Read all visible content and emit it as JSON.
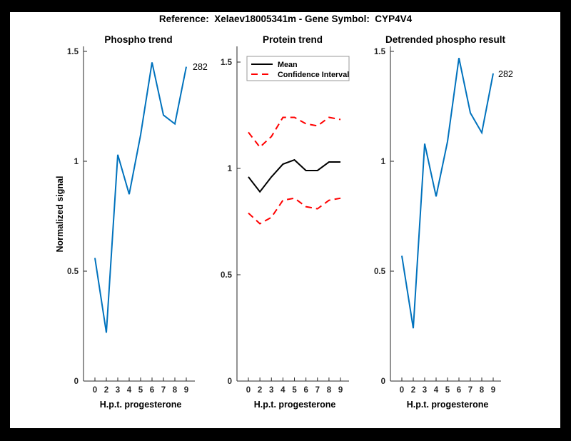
{
  "figure_title": "Reference:  Xelaev18005341m - Gene Symbol:  CYP4V4",
  "colors": {
    "background": "#000000",
    "figure_bg": "#FFFFFF",
    "blue": "#0072BD",
    "red": "#FF0000",
    "mean_black": "#000000",
    "axis": "#262626",
    "legend_border": "#999999"
  },
  "chart_data": [
    {
      "type": "line",
      "title": "Phospho trend",
      "xlabel": "H.p.t. progesterone",
      "ylabel": "Normalized signal",
      "x_labels": [
        "0",
        "2",
        "3",
        "4",
        "5",
        "6",
        "7",
        "8",
        "9"
      ],
      "y_ticks": [
        {
          "value": 0,
          "label": "0"
        },
        {
          "value": 0.5,
          "label": "0.5"
        },
        {
          "value": 1,
          "label": "1"
        },
        {
          "value": 1.5,
          "label": "1.5"
        }
      ],
      "ylim": [
        0,
        1.52
      ],
      "grid": false,
      "series": [
        {
          "name": "Phospho signal",
          "color": "#0072BD",
          "style": "solid",
          "values": [
            0.56,
            0.22,
            1.03,
            0.85,
            1.12,
            1.45,
            1.21,
            1.17,
            1.43
          ],
          "end_label": "282"
        }
      ]
    },
    {
      "type": "line",
      "title": "Protein trend",
      "xlabel": "H.p.t. progesterone",
      "ylabel": "",
      "x_labels": [
        "0",
        "2",
        "3",
        "4",
        "5",
        "6",
        "7",
        "8",
        "9"
      ],
      "y_ticks": [
        {
          "value": 0,
          "label": "0"
        },
        {
          "value": 0.5,
          "label": "0.5"
        },
        {
          "value": 1,
          "label": "1"
        },
        {
          "value": 1.5,
          "label": "1.5"
        }
      ],
      "ylim": [
        0,
        1.57
      ],
      "grid": false,
      "legend": {
        "position": "top-left",
        "items": [
          {
            "label": "Mean",
            "color": "#000000",
            "style": "solid"
          },
          {
            "label": "Confidence Interval",
            "color": "#FF0000",
            "style": "dashed"
          }
        ]
      },
      "series": [
        {
          "name": "Upper confidence interval",
          "color": "#FF0000",
          "style": "dashed",
          "values": [
            1.17,
            1.1,
            1.15,
            1.24,
            1.24,
            1.21,
            1.2,
            1.24,
            1.23
          ]
        },
        {
          "name": "Lower confidence interval",
          "color": "#FF0000",
          "style": "dashed",
          "values": [
            0.79,
            0.74,
            0.77,
            0.85,
            0.86,
            0.82,
            0.81,
            0.85,
            0.86
          ]
        },
        {
          "name": "Mean",
          "color": "#000000",
          "style": "solid",
          "values": [
            0.96,
            0.89,
            0.96,
            1.02,
            1.04,
            0.99,
            0.99,
            1.03,
            1.03
          ]
        }
      ]
    },
    {
      "type": "line",
      "title": "Detrended phospho result",
      "xlabel": "H.p.t. progesterone",
      "ylabel": "",
      "x_labels": [
        "0",
        "2",
        "3",
        "4",
        "5",
        "6",
        "7",
        "8",
        "9"
      ],
      "y_ticks": [
        {
          "value": 0,
          "label": "0"
        },
        {
          "value": 0.5,
          "label": "0.5"
        },
        {
          "value": 1,
          "label": "1"
        },
        {
          "value": 1.5,
          "label": "1.5"
        }
      ],
      "ylim": [
        0,
        1.52
      ],
      "grid": false,
      "series": [
        {
          "name": "Detrended phospho signal",
          "color": "#0072BD",
          "style": "solid",
          "values": [
            0.57,
            0.24,
            1.08,
            0.84,
            1.09,
            1.47,
            1.22,
            1.13,
            1.4
          ],
          "end_label": "282"
        }
      ]
    }
  ]
}
